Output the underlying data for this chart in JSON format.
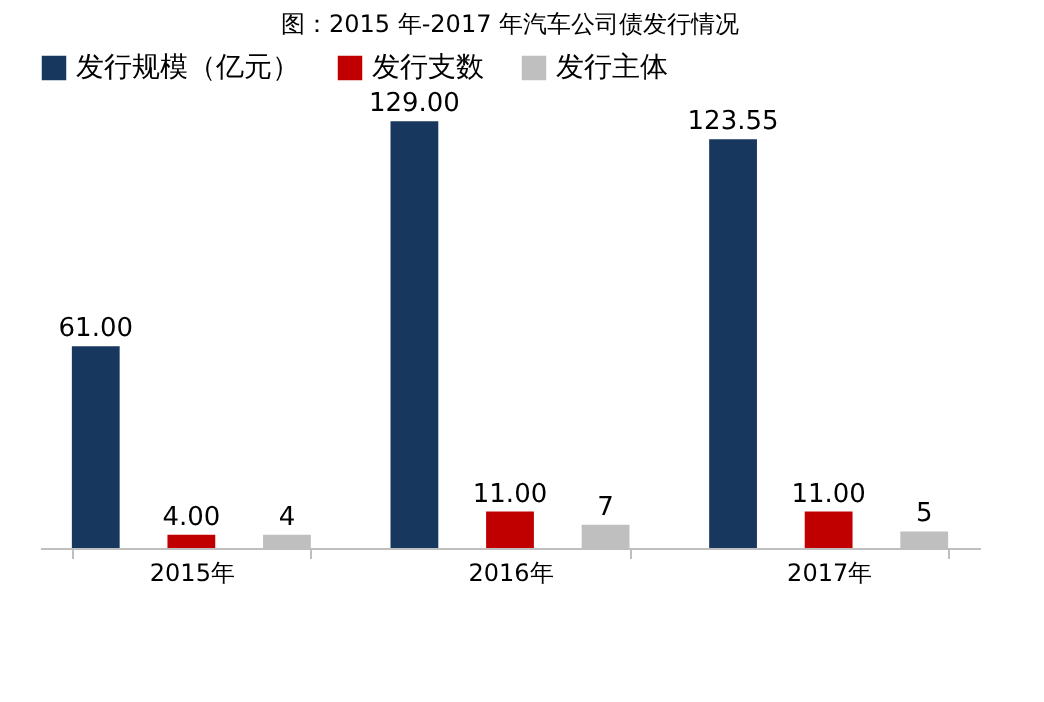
{
  "chart_data": {
    "type": "bar",
    "title": "图：2015 年-2017 年汽车公司债发行情况",
    "categories": [
      "2015年",
      "2016年",
      "2017年"
    ],
    "series": [
      {
        "name": "发行规模（亿元）",
        "color": "#17375e",
        "values": [
          61,
          129,
          123.55
        ],
        "value_labels": [
          "61.00",
          "129.00",
          "123.55"
        ]
      },
      {
        "name": "发行支数",
        "color": "#c00000",
        "values": [
          4,
          11,
          11
        ],
        "value_labels": [
          "4.00",
          "11.00",
          "11.00"
        ]
      },
      {
        "name": "发行主体",
        "color": "#bfbfbf",
        "values": [
          4,
          7,
          5
        ],
        "value_labels": [
          "4",
          "7",
          "5"
        ]
      }
    ],
    "legend": "top",
    "grid": false
  }
}
